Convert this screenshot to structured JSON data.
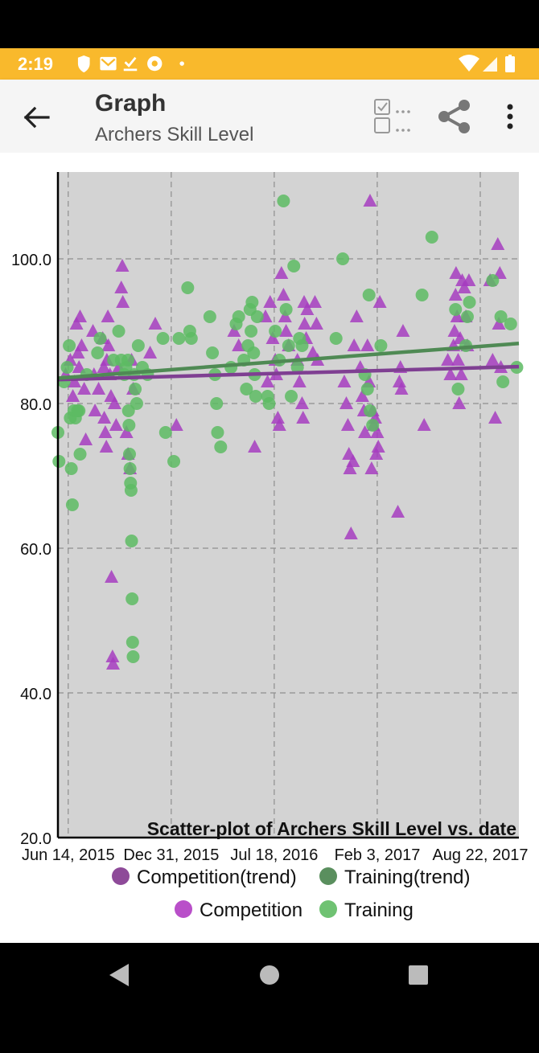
{
  "status_bar": {
    "time": "2:19",
    "left_icons": [
      "shield-icon",
      "gmail-icon",
      "checkmark-icon",
      "chrome-icon",
      "dot-icon"
    ],
    "right_icons": [
      "wifi-icon",
      "signal-icon",
      "battery-icon"
    ],
    "background": "#F9B92C"
  },
  "app_bar": {
    "title": "Graph",
    "subtitle": "Archers Skill Level",
    "actions": [
      "back-arrow-icon",
      "checkbox-toggle-icon",
      "share-icon",
      "more-vert-icon"
    ]
  },
  "chart_data": {
    "type": "scatter",
    "title": "Scatter-plot of Archers Skill Level vs. date",
    "x_ticks": [
      "Jun 14, 2015",
      "Dec 31, 2015",
      "Jul 18, 2016",
      "Feb 3, 2017",
      "Aug 22, 2017"
    ],
    "x_range": [
      "2015-05-25",
      "2017-11-05"
    ],
    "y_ticks": [
      "20.0",
      "40.0",
      "60.0",
      "80.0",
      "100.0"
    ],
    "ylim": [
      20,
      112
    ],
    "grid": true,
    "legend_position": "bottom",
    "legend": [
      {
        "label": "Competition(trend)",
        "color": "#8E4A99",
        "marker": "circle"
      },
      {
        "label": "Training(trend)",
        "color": "#5A8F5E",
        "marker": "circle"
      },
      {
        "label": "Competition",
        "color": "#B94FC9",
        "marker": "circle"
      },
      {
        "label": "Training",
        "color": "#6FC272",
        "marker": "circle"
      }
    ],
    "series": [
      {
        "name": "Competition",
        "marker": "triangle",
        "color": "#A63DBF",
        "points": [
          [
            "2015-06-09",
            84
          ],
          [
            "2015-06-18",
            86
          ],
          [
            "2015-06-23",
            81
          ],
          [
            "2015-06-26",
            83
          ],
          [
            "2015-06-30",
            91
          ],
          [
            "2015-07-03",
            87
          ],
          [
            "2015-07-05",
            85
          ],
          [
            "2015-07-07",
            92
          ],
          [
            "2015-07-10",
            88
          ],
          [
            "2015-07-15",
            82
          ],
          [
            "2015-07-18",
            75
          ],
          [
            "2015-08-01",
            90
          ],
          [
            "2015-08-03",
            84
          ],
          [
            "2015-08-05",
            79
          ],
          [
            "2015-08-12",
            82
          ],
          [
            "2015-08-20",
            89
          ],
          [
            "2015-08-22",
            85
          ],
          [
            "2015-08-23",
            78
          ],
          [
            "2015-08-25",
            76
          ],
          [
            "2015-08-27",
            74
          ],
          [
            "2015-08-28",
            86
          ],
          [
            "2015-08-30",
            92
          ],
          [
            "2015-08-31",
            88
          ],
          [
            "2015-09-03",
            84
          ],
          [
            "2015-09-05",
            81
          ],
          [
            "2015-09-06",
            56
          ],
          [
            "2015-09-08",
            45
          ],
          [
            "2015-09-09",
            44
          ],
          [
            "2015-09-12",
            80
          ],
          [
            "2015-09-15",
            77
          ],
          [
            "2015-09-20",
            85
          ],
          [
            "2015-09-25",
            96
          ],
          [
            "2015-09-27",
            99
          ],
          [
            "2015-09-28",
            94
          ],
          [
            "2015-10-05",
            76
          ],
          [
            "2015-10-08",
            73
          ],
          [
            "2015-10-12",
            71
          ],
          [
            "2015-10-15",
            86
          ],
          [
            "2015-10-18",
            82
          ],
          [
            "2015-11-20",
            87
          ],
          [
            "2015-11-30",
            91
          ],
          [
            "2016-01-10",
            77
          ],
          [
            "2016-05-01",
            90
          ],
          [
            "2016-05-10",
            88
          ],
          [
            "2016-06-10",
            74
          ],
          [
            "2016-07-01",
            92
          ],
          [
            "2016-07-05",
            83
          ],
          [
            "2016-07-10",
            94
          ],
          [
            "2016-07-15",
            89
          ],
          [
            "2016-07-20",
            86
          ],
          [
            "2016-07-22",
            84
          ],
          [
            "2016-07-25",
            78
          ],
          [
            "2016-07-28",
            77
          ],
          [
            "2016-08-01",
            98
          ],
          [
            "2016-08-05",
            95
          ],
          [
            "2016-08-08",
            92
          ],
          [
            "2016-08-10",
            90
          ],
          [
            "2016-08-15",
            88
          ],
          [
            "2016-09-01",
            86
          ],
          [
            "2016-09-05",
            83
          ],
          [
            "2016-09-10",
            80
          ],
          [
            "2016-09-12",
            78
          ],
          [
            "2016-09-14",
            94
          ],
          [
            "2016-09-15",
            91
          ],
          [
            "2016-09-18",
            89
          ],
          [
            "2016-09-20",
            93
          ],
          [
            "2016-10-01",
            87
          ],
          [
            "2016-10-05",
            94
          ],
          [
            "2016-10-08",
            91
          ],
          [
            "2016-10-10",
            86
          ],
          [
            "2016-12-01",
            83
          ],
          [
            "2016-12-05",
            80
          ],
          [
            "2016-12-08",
            77
          ],
          [
            "2016-12-10",
            73
          ],
          [
            "2016-12-12",
            71
          ],
          [
            "2016-12-14",
            62
          ],
          [
            "2016-12-18",
            72
          ],
          [
            "2016-12-20",
            88
          ],
          [
            "2016-12-25",
            92
          ],
          [
            "2017-01-01",
            85
          ],
          [
            "2017-01-05",
            81
          ],
          [
            "2017-01-08",
            79
          ],
          [
            "2017-01-10",
            76
          ],
          [
            "2017-01-15",
            88
          ],
          [
            "2017-01-18",
            83
          ],
          [
            "2017-01-20",
            108
          ],
          [
            "2017-01-23",
            71
          ],
          [
            "2017-01-25",
            79
          ],
          [
            "2017-01-27",
            77
          ],
          [
            "2017-01-30",
            78
          ],
          [
            "2017-02-01",
            73
          ],
          [
            "2017-02-03",
            76
          ],
          [
            "2017-02-05",
            74
          ],
          [
            "2017-02-08",
            94
          ],
          [
            "2017-03-15",
            65
          ],
          [
            "2017-03-18",
            83
          ],
          [
            "2017-03-20",
            85
          ],
          [
            "2017-03-22",
            82
          ],
          [
            "2017-03-25",
            90
          ],
          [
            "2017-05-05",
            77
          ],
          [
            "2017-06-20",
            86
          ],
          [
            "2017-06-25",
            84
          ],
          [
            "2017-07-01",
            88
          ],
          [
            "2017-07-03",
            90
          ],
          [
            "2017-07-05",
            95
          ],
          [
            "2017-07-06",
            98
          ],
          [
            "2017-07-08",
            92
          ],
          [
            "2017-07-10",
            86
          ],
          [
            "2017-07-12",
            80
          ],
          [
            "2017-07-14",
            89
          ],
          [
            "2017-07-16",
            84
          ],
          [
            "2017-07-18",
            97
          ],
          [
            "2017-07-22",
            96
          ],
          [
            "2017-07-25",
            92
          ],
          [
            "2017-07-28",
            88
          ],
          [
            "2017-07-31",
            97
          ],
          [
            "2017-09-10",
            97
          ],
          [
            "2017-09-15",
            86
          ],
          [
            "2017-09-20",
            78
          ],
          [
            "2017-09-25",
            102
          ],
          [
            "2017-09-27",
            91
          ],
          [
            "2017-09-29",
            98
          ],
          [
            "2017-10-01",
            85
          ]
        ]
      },
      {
        "name": "Training",
        "marker": "circle",
        "color": "#5DBB63",
        "points": [
          [
            "2015-05-25",
            76
          ],
          [
            "2015-05-27",
            72
          ],
          [
            "2015-06-06",
            83
          ],
          [
            "2015-06-12",
            85
          ],
          [
            "2015-06-16",
            88
          ],
          [
            "2015-06-18",
            78
          ],
          [
            "2015-06-20",
            71
          ],
          [
            "2015-06-22",
            66
          ],
          [
            "2015-06-25",
            79
          ],
          [
            "2015-06-28",
            78
          ],
          [
            "2015-07-02",
            79
          ],
          [
            "2015-07-05",
            79
          ],
          [
            "2015-07-07",
            73
          ],
          [
            "2015-07-20",
            84
          ],
          [
            "2015-08-10",
            87
          ],
          [
            "2015-08-15",
            89
          ],
          [
            "2015-09-10",
            86
          ],
          [
            "2015-09-20",
            90
          ],
          [
            "2015-09-25",
            86
          ],
          [
            "2015-10-01",
            84
          ],
          [
            "2015-10-04",
            85
          ],
          [
            "2015-10-08",
            86
          ],
          [
            "2015-10-09",
            79
          ],
          [
            "2015-10-10",
            77
          ],
          [
            "2015-10-11",
            73
          ],
          [
            "2015-10-12",
            71
          ],
          [
            "2015-10-13",
            69
          ],
          [
            "2015-10-14",
            68
          ],
          [
            "2015-10-15",
            61
          ],
          [
            "2015-10-16",
            53
          ],
          [
            "2015-10-17",
            47
          ],
          [
            "2015-10-18",
            45
          ],
          [
            "2015-10-20",
            84
          ],
          [
            "2015-10-22",
            82
          ],
          [
            "2015-10-25",
            80
          ],
          [
            "2015-10-28",
            88
          ],
          [
            "2015-11-05",
            85
          ],
          [
            "2015-11-15",
            84
          ],
          [
            "2015-12-15",
            89
          ],
          [
            "2015-12-20",
            76
          ],
          [
            "2016-01-05",
            72
          ],
          [
            "2016-01-15",
            89
          ],
          [
            "2016-02-01",
            96
          ],
          [
            "2016-02-05",
            90
          ],
          [
            "2016-02-08",
            89
          ],
          [
            "2016-03-15",
            92
          ],
          [
            "2016-03-20",
            87
          ],
          [
            "2016-03-25",
            84
          ],
          [
            "2016-03-28",
            80
          ],
          [
            "2016-03-30",
            76
          ],
          [
            "2016-04-05",
            74
          ],
          [
            "2016-04-25",
            85
          ],
          [
            "2016-05-05",
            91
          ],
          [
            "2016-05-10",
            92
          ],
          [
            "2016-05-20",
            86
          ],
          [
            "2016-05-25",
            82
          ],
          [
            "2016-05-28",
            88
          ],
          [
            "2016-06-01",
            93
          ],
          [
            "2016-06-03",
            90
          ],
          [
            "2016-06-05",
            94
          ],
          [
            "2016-06-08",
            87
          ],
          [
            "2016-06-10",
            84
          ],
          [
            "2016-06-12",
            81
          ],
          [
            "2016-06-15",
            92
          ],
          [
            "2016-07-05",
            81
          ],
          [
            "2016-07-08",
            80
          ],
          [
            "2016-07-20",
            90
          ],
          [
            "2016-07-28",
            86
          ],
          [
            "2016-08-05",
            108
          ],
          [
            "2016-08-10",
            93
          ],
          [
            "2016-08-15",
            88
          ],
          [
            "2016-08-20",
            81
          ],
          [
            "2016-08-25",
            99
          ],
          [
            "2016-09-01",
            85
          ],
          [
            "2016-09-05",
            89
          ],
          [
            "2016-09-10",
            88
          ],
          [
            "2016-11-15",
            89
          ],
          [
            "2016-11-28",
            100
          ],
          [
            "2017-01-10",
            84
          ],
          [
            "2017-01-15",
            82
          ],
          [
            "2017-01-18",
            95
          ],
          [
            "2017-01-20",
            79
          ],
          [
            "2017-01-25",
            77
          ],
          [
            "2017-02-10",
            88
          ],
          [
            "2017-05-01",
            95
          ],
          [
            "2017-05-20",
            103
          ],
          [
            "2017-07-05",
            93
          ],
          [
            "2017-07-10",
            82
          ],
          [
            "2017-07-25",
            88
          ],
          [
            "2017-07-28",
            92
          ],
          [
            "2017-08-01",
            94
          ],
          [
            "2017-09-15",
            97
          ],
          [
            "2017-10-01",
            92
          ],
          [
            "2017-10-05",
            83
          ],
          [
            "2017-10-20",
            91
          ],
          [
            "2017-11-01",
            85
          ]
        ]
      },
      {
        "name": "Competition(trend)",
        "type": "line",
        "color": "#7F3F92",
        "points": [
          [
            "2015-05-25",
            83.3
          ],
          [
            "2017-11-05",
            85.1
          ]
        ]
      },
      {
        "name": "Training(trend)",
        "type": "line",
        "color": "#4F8A54",
        "points": [
          [
            "2015-05-25",
            83.5
          ],
          [
            "2017-11-05",
            88.3
          ]
        ]
      }
    ]
  }
}
